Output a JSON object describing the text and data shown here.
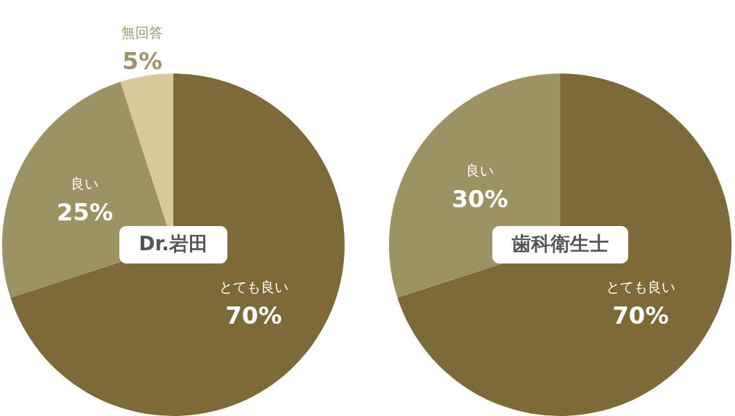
{
  "chart_data": [
    {
      "type": "pie",
      "title": "Dr.岩田",
      "categories": [
        "とても良い",
        "良い",
        "無回答"
      ],
      "values": [
        70,
        25,
        5
      ],
      "colors": [
        "#7d6a39",
        "#9d9263",
        "#d7c999"
      ],
      "value_labels": [
        "70%",
        "25%",
        "5%"
      ]
    },
    {
      "type": "pie",
      "title": "歯科衛生士",
      "categories": [
        "とても良い",
        "良い"
      ],
      "values": [
        70,
        30
      ],
      "colors": [
        "#7d6a39",
        "#9d9263"
      ],
      "value_labels": [
        "70%",
        "30%"
      ]
    }
  ]
}
